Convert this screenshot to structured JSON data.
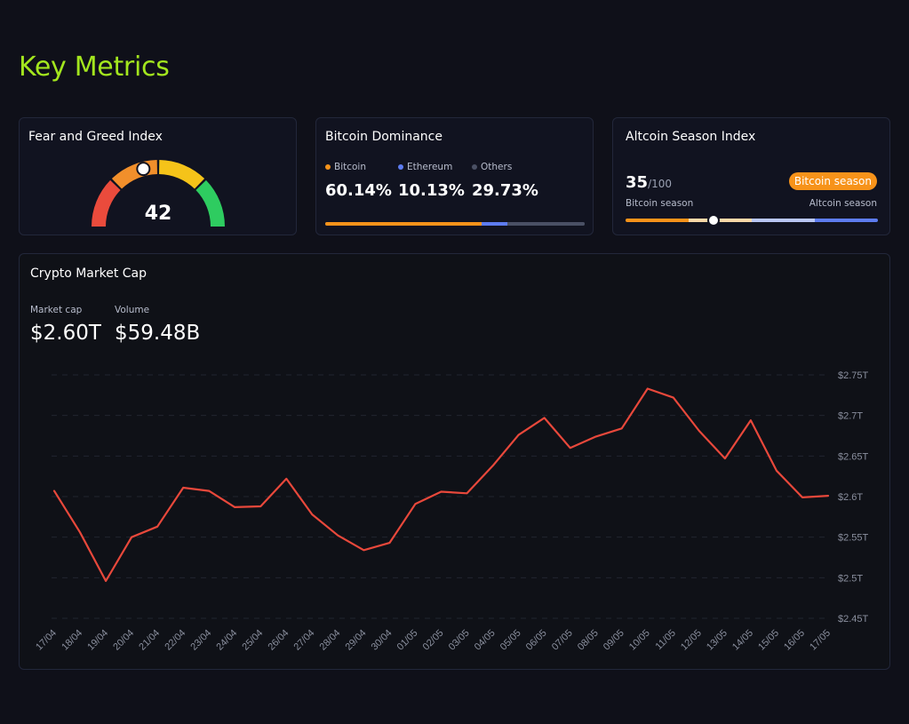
{
  "page": {
    "title": "Key Metrics"
  },
  "fear_greed": {
    "title": "Fear and Greed Index",
    "value": "42",
    "level": 42,
    "colors": [
      "#ea4b3c",
      "#f18f2b",
      "#f5c319",
      "#2ecc60"
    ]
  },
  "dominance": {
    "title": "Bitcoin Dominance",
    "items": [
      {
        "label": "Bitcoin",
        "value": "60.14%",
        "share": 60.14,
        "color": "#f7931a"
      },
      {
        "label": "Ethereum",
        "value": "10.13%",
        "share": 10.13,
        "color": "#5d7cf0"
      },
      {
        "label": "Others",
        "value": "29.73%",
        "share": 29.73,
        "color": "#4a5064"
      }
    ]
  },
  "altcoin": {
    "title": "Altcoin Season Index",
    "score": "35",
    "max": "/100",
    "level": 35,
    "badge": "Bitcoin season",
    "left_label": "Bitcoin season",
    "right_label": "Altcoin season",
    "track_colors": [
      "#f7931a",
      "#fcd9a8",
      "#b9c7f5",
      "#5d7cf0"
    ]
  },
  "market_cap": {
    "title": "Crypto Market Cap",
    "stats": [
      {
        "label": "Market cap",
        "value": "$2.60T"
      },
      {
        "label": "Volume",
        "value": "$59.48B"
      }
    ],
    "line_color": "#e8483b"
  },
  "chart_data": {
    "type": "line",
    "x": [
      "17/04",
      "18/04",
      "19/04",
      "20/04",
      "21/04",
      "22/04",
      "23/04",
      "24/04",
      "25/04",
      "26/04",
      "27/04",
      "28/04",
      "29/04",
      "30/04",
      "01/05",
      "02/05",
      "03/05",
      "04/05",
      "05/05",
      "06/05",
      "07/05",
      "08/05",
      "09/05",
      "10/05",
      "11/05",
      "12/05",
      "13/05",
      "14/05",
      "15/05",
      "16/05",
      "17/05"
    ],
    "series": [
      {
        "values": [
          2.607,
          2.556,
          2.496,
          2.55,
          2.563,
          2.611,
          2.607,
          2.587,
          2.588,
          2.622,
          2.578,
          2.552,
          2.534,
          2.543,
          2.591,
          2.606,
          2.604,
          2.638,
          2.676,
          2.697,
          2.66,
          2.674,
          2.684,
          2.733,
          2.722,
          2.681,
          2.647,
          2.694,
          2.632,
          2.599,
          2.601
        ]
      }
    ],
    "yticks": [
      "$2.45T",
      "$2.5T",
      "$2.55T",
      "$2.6T",
      "$2.65T",
      "$2.7T",
      "$2.75T"
    ],
    "ylim": [
      2.45,
      2.75
    ],
    "grid": true,
    "y_axis_side": "right"
  }
}
